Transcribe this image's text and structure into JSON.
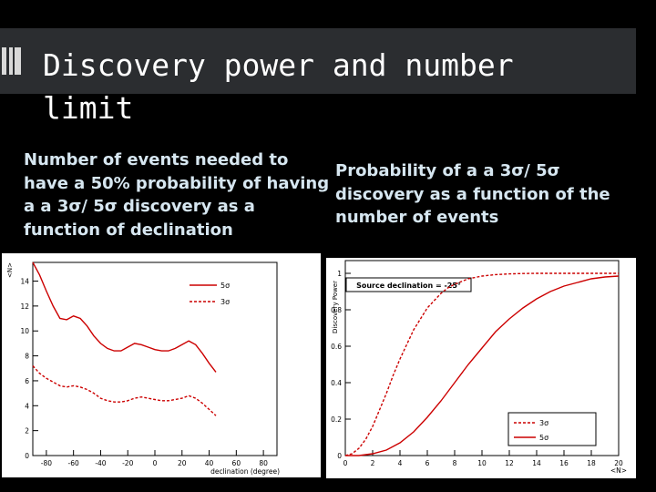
{
  "slide": {
    "title": "Discovery power and number limit",
    "caption_left": "Number of events needed to\nhave a 50% probability of having\na a 3σ/ 5σ discovery as a\nfunction of declination",
    "caption_right": "Probability of a a 3σ/ 5σ\ndiscovery as a function of the\nnumber of events"
  },
  "colors": {
    "background": "#000000",
    "title_bar": "#2b2d30",
    "caption_text": "#d6e6f0",
    "curve": "#cc0000"
  },
  "chart_data": [
    {
      "type": "line",
      "xlabel": "declination (degree)",
      "ylabel": "<N>",
      "x_ticks": [
        "-80",
        "-60",
        "-40",
        "-20",
        "0",
        "20",
        "40",
        "60",
        "80"
      ],
      "y_ticks": [
        "0",
        "2",
        "4",
        "6",
        "8",
        "10",
        "12",
        "14"
      ],
      "xlim": [
        -90,
        90
      ],
      "ylim": [
        0,
        15.5
      ],
      "legend": [
        "5σ",
        "3σ"
      ],
      "legend_position": "top-right",
      "series": [
        {
          "name": "5σ",
          "style": "solid",
          "x": [
            -90,
            -85,
            -80,
            -75,
            -70,
            -65,
            -60,
            -55,
            -50,
            -45,
            -40,
            -35,
            -30,
            -25,
            -20,
            -15,
            -10,
            -5,
            0,
            5,
            10,
            15,
            20,
            25,
            30,
            35,
            40,
            45
          ],
          "y": [
            15.5,
            14.5,
            13.2,
            12.0,
            11.0,
            10.9,
            11.2,
            11.0,
            10.4,
            9.6,
            9.0,
            8.6,
            8.4,
            8.4,
            8.7,
            9.0,
            8.9,
            8.7,
            8.5,
            8.4,
            8.4,
            8.6,
            8.9,
            9.2,
            8.9,
            8.2,
            7.4,
            6.7
          ]
        },
        {
          "name": "3σ",
          "style": "dashed",
          "x": [
            -90,
            -85,
            -80,
            -75,
            -70,
            -65,
            -60,
            -55,
            -50,
            -45,
            -40,
            -35,
            -30,
            -25,
            -20,
            -15,
            -10,
            -5,
            0,
            5,
            10,
            15,
            20,
            25,
            30,
            35,
            40,
            45
          ],
          "y": [
            7.2,
            6.6,
            6.2,
            5.9,
            5.6,
            5.5,
            5.6,
            5.5,
            5.3,
            5.0,
            4.6,
            4.4,
            4.3,
            4.3,
            4.4,
            4.6,
            4.7,
            4.6,
            4.5,
            4.4,
            4.4,
            4.5,
            4.6,
            4.8,
            4.6,
            4.2,
            3.7,
            3.2
          ]
        }
      ]
    },
    {
      "type": "line",
      "title": "Source declination = -25°",
      "xlabel": "<N>",
      "ylabel": "Discovery Power",
      "x_ticks": [
        "0",
        "2",
        "4",
        "6",
        "8",
        "10",
        "12",
        "14",
        "16",
        "18",
        "20"
      ],
      "y_ticks": [
        "0",
        "0.2",
        "0.4",
        "0.6",
        "0.8",
        "1"
      ],
      "xlim": [
        0,
        20
      ],
      "ylim": [
        0,
        1.07
      ],
      "legend": [
        "3σ",
        "5σ"
      ],
      "legend_position": "bottom-right",
      "series": [
        {
          "name": "3σ",
          "style": "dashed",
          "x": [
            0,
            0.5,
            1,
            1.5,
            2,
            2.5,
            3,
            3.5,
            4,
            4.5,
            5,
            5.5,
            6,
            6.5,
            7,
            7.5,
            8,
            9,
            10,
            11,
            12,
            13,
            14,
            15,
            16,
            17,
            18,
            19,
            20
          ],
          "y": [
            0.0,
            0.01,
            0.04,
            0.09,
            0.16,
            0.25,
            0.34,
            0.44,
            0.53,
            0.61,
            0.69,
            0.75,
            0.81,
            0.85,
            0.89,
            0.92,
            0.94,
            0.97,
            0.985,
            0.993,
            0.997,
            0.999,
            1.0,
            1.0,
            1.0,
            1.0,
            1.0,
            1.0,
            1.0
          ]
        },
        {
          "name": "5σ",
          "style": "solid",
          "x": [
            0,
            1,
            2,
            3,
            4,
            5,
            6,
            7,
            8,
            9,
            10,
            11,
            12,
            13,
            14,
            15,
            16,
            17,
            18,
            19,
            20
          ],
          "y": [
            0.0,
            0.0,
            0.01,
            0.03,
            0.07,
            0.13,
            0.21,
            0.3,
            0.4,
            0.5,
            0.59,
            0.68,
            0.75,
            0.81,
            0.86,
            0.9,
            0.93,
            0.95,
            0.97,
            0.98,
            0.985
          ]
        }
      ]
    }
  ]
}
